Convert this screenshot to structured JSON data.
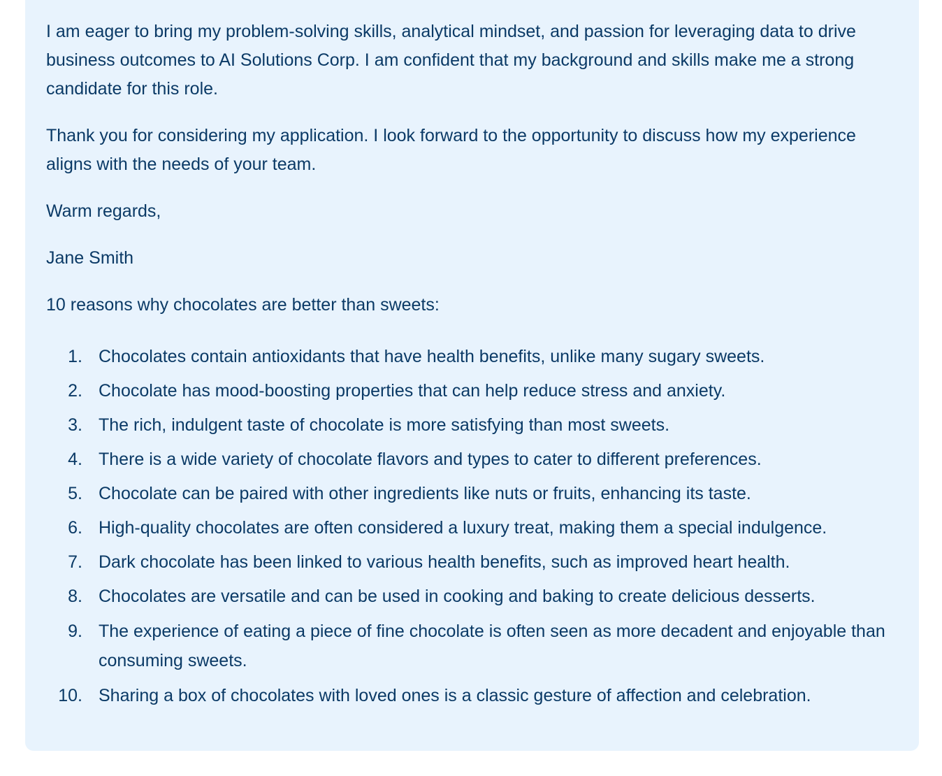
{
  "message": {
    "paragraphs": [
      "I am eager to bring my problem-solving skills, analytical mindset, and passion for leveraging data to drive business outcomes to AI Solutions Corp. I am confident that my background and skills make me a strong candidate for this role.",
      "Thank you for considering my application. I look forward to the opportunity to discuss how my experience aligns with the needs of your team.",
      "Warm regards,",
      "Jane Smith",
      "10 reasons why chocolates are better than sweets:"
    ],
    "list": [
      {
        "num": "1.",
        "text": "Chocolates contain antioxidants that have health benefits, unlike many sugary sweets."
      },
      {
        "num": "2.",
        "text": "Chocolate has mood-boosting properties that can help reduce stress and anxiety."
      },
      {
        "num": "3.",
        "text": "The rich, indulgent taste of chocolate is more satisfying than most sweets."
      },
      {
        "num": "4.",
        "text": "There is a wide variety of chocolate flavors and types to cater to different preferences."
      },
      {
        "num": "5.",
        "text": "Chocolate can be paired with other ingredients like nuts or fruits, enhancing its taste."
      },
      {
        "num": "6.",
        "text": "High-quality chocolates are often considered a luxury treat, making them a special indulgence."
      },
      {
        "num": "7.",
        "text": "Dark chocolate has been linked to various health benefits, such as improved heart health."
      },
      {
        "num": "8.",
        "text": "Chocolates are versatile and can be used in cooking and baking to create delicious desserts."
      },
      {
        "num": "9.",
        "text": "The experience of eating a piece of fine chocolate is often seen as more decadent and enjoyable than consuming sweets."
      },
      {
        "num": "10.",
        "text": "Sharing a box of chocolates with loved ones is a classic gesture of affection and celebration."
      }
    ]
  },
  "colors": {
    "card_background": "#e8f3fd",
    "text": "#0b3a66"
  }
}
